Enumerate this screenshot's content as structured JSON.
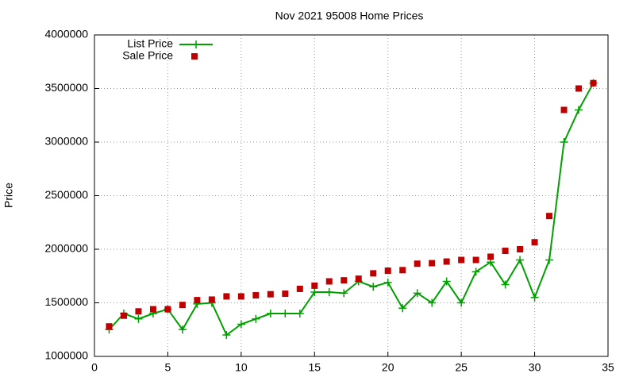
{
  "chart_data": {
    "type": "line",
    "title": "Nov 2021 95008 Home Prices",
    "y_label": "Price",
    "x": [
      1,
      2,
      3,
      4,
      5,
      6,
      7,
      8,
      9,
      10,
      11,
      12,
      13,
      14,
      15,
      16,
      17,
      18,
      19,
      20,
      21,
      22,
      23,
      24,
      25,
      26,
      27,
      28,
      29,
      30,
      31,
      32,
      33,
      34
    ],
    "series": [
      {
        "name": "List Price",
        "color": "#00a000",
        "style": "linespoints",
        "values": [
          1250000,
          1400000,
          1350000,
          1400000,
          1440000,
          1250000,
          1490000,
          1500000,
          1200000,
          1300000,
          1350000,
          1400000,
          1400000,
          1400000,
          1600000,
          1600000,
          1590000,
          1700000,
          1650000,
          1690000,
          1450000,
          1590000,
          1500000,
          1700000,
          1500000,
          1790000,
          1880000,
          1670000,
          1900000,
          1550000,
          1900000,
          3000000,
          3300000,
          3550000
        ]
      },
      {
        "name": "Sale Price",
        "color": "#c00000",
        "style": "points",
        "values": [
          1280000,
          1380000,
          1420000,
          1440000,
          1440000,
          1480000,
          1525000,
          1530000,
          1560000,
          1560000,
          1570000,
          1580000,
          1585000,
          1630000,
          1660000,
          1700000,
          1710000,
          1725000,
          1775000,
          1800000,
          1805000,
          1865000,
          1870000,
          1885000,
          1900000,
          1900000,
          1930000,
          1985000,
          2000000,
          2065000,
          2310000,
          3300000,
          3500000,
          3550000
        ]
      }
    ],
    "xlim": [
      0,
      35
    ],
    "xticks": [
      0,
      5,
      10,
      15,
      20,
      25,
      30,
      35
    ],
    "ylim": [
      1000000,
      4000000
    ],
    "yticks": [
      1000000,
      1500000,
      2000000,
      2500000,
      3000000,
      3500000,
      4000000
    ],
    "grid": true,
    "legend": "top-left"
  }
}
